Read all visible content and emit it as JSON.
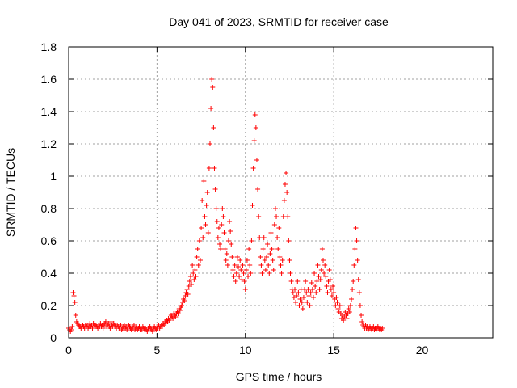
{
  "chart_data": {
    "type": "scatter",
    "title": "Day 041 of 2023, SRMTID for receiver case",
    "xlabel": "GPS time / hours",
    "ylabel": "SRMTID / TECUs",
    "xlim": [
      0,
      24
    ],
    "ylim": [
      0,
      1.8
    ],
    "xticks": [
      0,
      5,
      10,
      15,
      20
    ],
    "xtick_labels": [
      "0",
      "5",
      "10",
      "15",
      "20"
    ],
    "yticks": [
      0,
      0.2,
      0.4,
      0.6,
      0.8,
      1.0,
      1.2,
      1.4,
      1.6,
      1.8
    ],
    "ytick_labels": [
      "0",
      "0.2",
      "0.4",
      "0.6",
      "0.8",
      "1",
      "1.2",
      "1.4",
      "1.6",
      "1.8"
    ],
    "grid": true,
    "marker": "+",
    "colors": {
      "series": "#ff0000",
      "grid": "#a0a0a0",
      "axis": "#000000"
    },
    "series": [
      {
        "name": "SRMTID",
        "x_start": 0,
        "x_step": 0.05,
        "values": [
          0.06,
          0.05,
          0.04,
          0.05,
          0.07,
          0.28,
          0.26,
          0.22,
          0.14,
          0.1,
          0.09,
          0.08,
          0.07,
          0.07,
          0.06,
          0.07,
          0.08,
          0.07,
          0.06,
          0.08,
          0.07,
          0.08,
          0.06,
          0.07,
          0.09,
          0.07,
          0.08,
          0.06,
          0.09,
          0.08,
          0.07,
          0.08,
          0.07,
          0.06,
          0.08,
          0.07,
          0.09,
          0.07,
          0.08,
          0.06,
          0.08,
          0.09,
          0.1,
          0.07,
          0.08,
          0.09,
          0.07,
          0.06,
          0.1,
          0.08,
          0.07,
          0.09,
          0.08,
          0.07,
          0.06,
          0.08,
          0.07,
          0.06,
          0.07,
          0.08,
          0.05,
          0.06,
          0.07,
          0.08,
          0.06,
          0.07,
          0.05,
          0.06,
          0.08,
          0.07,
          0.06,
          0.05,
          0.07,
          0.06,
          0.08,
          0.05,
          0.06,
          0.07,
          0.05,
          0.06,
          0.07,
          0.05,
          0.06,
          0.05,
          0.07,
          0.06,
          0.05,
          0.06,
          0.05,
          0.04,
          0.06,
          0.05,
          0.07,
          0.06,
          0.05,
          0.04,
          0.06,
          0.07,
          0.06,
          0.05,
          0.06,
          0.07,
          0.08,
          0.06,
          0.07,
          0.08,
          0.07,
          0.09,
          0.08,
          0.1,
          0.09,
          0.11,
          0.1,
          0.12,
          0.11,
          0.12,
          0.14,
          0.13,
          0.12,
          0.15,
          0.14,
          0.13,
          0.15,
          0.16,
          0.15,
          0.18,
          0.17,
          0.19,
          0.2,
          0.22,
          0.24,
          0.23,
          0.26,
          0.28,
          0.3,
          0.27,
          0.32,
          0.35,
          0.38,
          0.33,
          0.45,
          0.4,
          0.36,
          0.42,
          0.38,
          0.5,
          0.55,
          0.45,
          0.6,
          0.48,
          0.68,
          0.85,
          0.62,
          0.97,
          0.75,
          0.7,
          0.82,
          0.9,
          0.65,
          1.05,
          1.2,
          1.42,
          1.6,
          1.55,
          1.3,
          1.05,
          0.92,
          0.8,
          0.72,
          0.62,
          0.68,
          0.58,
          0.55,
          0.7,
          0.8,
          0.75,
          0.65,
          0.55,
          0.48,
          0.52,
          0.45,
          0.6,
          0.72,
          0.66,
          0.58,
          0.5,
          0.42,
          0.38,
          0.45,
          0.35,
          0.4,
          0.5,
          0.44,
          0.38,
          0.48,
          0.42,
          0.36,
          0.45,
          0.4,
          0.35,
          0.3,
          0.42,
          0.48,
          0.38,
          0.55,
          0.45,
          0.4,
          0.6,
          0.82,
          1.05,
          1.22,
          1.38,
          1.3,
          1.1,
          0.92,
          0.75,
          0.62,
          0.5,
          0.45,
          0.4,
          0.55,
          0.62,
          0.48,
          0.42,
          0.5,
          0.58,
          0.45,
          0.4,
          0.52,
          0.65,
          0.55,
          0.48,
          0.42,
          0.7,
          0.8,
          0.75,
          0.62,
          0.55,
          0.68,
          0.5,
          0.45,
          0.4,
          0.48,
          0.75,
          0.85,
          0.95,
          1.02,
          0.9,
          0.75,
          0.6,
          0.48,
          0.4,
          0.35,
          0.3,
          0.28,
          0.25,
          0.3,
          0.22,
          0.26,
          0.35,
          0.28,
          0.2,
          0.24,
          0.3,
          0.22,
          0.18,
          0.25,
          0.3,
          0.35,
          0.28,
          0.22,
          0.3,
          0.26,
          0.2,
          0.28,
          0.34,
          0.3,
          0.25,
          0.4,
          0.32,
          0.28,
          0.35,
          0.45,
          0.38,
          0.3,
          0.36,
          0.42,
          0.55,
          0.48,
          0.4,
          0.45,
          0.38,
          0.32,
          0.28,
          0.35,
          0.42,
          0.36,
          0.3,
          0.26,
          0.32,
          0.28,
          0.24,
          0.2,
          0.25,
          0.22,
          0.18,
          0.16,
          0.2,
          0.15,
          0.12,
          0.14,
          0.11,
          0.13,
          0.16,
          0.14,
          0.12,
          0.15,
          0.18,
          0.16,
          0.2,
          0.24,
          0.3,
          0.35,
          0.45,
          0.55,
          0.68,
          0.6,
          0.48,
          0.36,
          0.28,
          0.2,
          0.14,
          0.1,
          0.08,
          0.07,
          0.06,
          0.08,
          0.06,
          0.07,
          0.05,
          0.06,
          0.07,
          0.06,
          0.05,
          0.06,
          0.07,
          0.05,
          0.06,
          0.05,
          0.06,
          0.07,
          0.06,
          0.05,
          0.06,
          0.05,
          0.06
        ]
      }
    ]
  }
}
